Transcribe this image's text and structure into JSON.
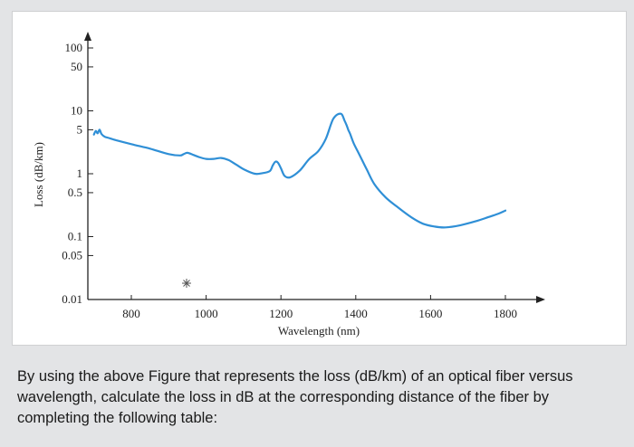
{
  "chart_data": {
    "type": "line",
    "title": "",
    "xlabel": "Wavelength (nm)",
    "ylabel": "Loss (dB/km)",
    "xlim": [
      650,
      1900
    ],
    "ylim": [
      0.01,
      300
    ],
    "y_scale": "log",
    "x_ticks": [
      800,
      1000,
      1200,
      1400,
      1600,
      1800
    ],
    "y_ticks": [
      {
        "value": 100,
        "label": "100"
      },
      {
        "value": 50,
        "label": "50"
      },
      {
        "value": 10,
        "label": "10"
      },
      {
        "value": 5,
        "label": "5"
      },
      {
        "value": 1,
        "label": "1"
      },
      {
        "value": 0.5,
        "label": "0.5"
      },
      {
        "value": 0.1,
        "label": "0.1"
      },
      {
        "value": 0.05,
        "label": "0.05"
      },
      {
        "value": 0.01,
        "label": "0.01"
      }
    ],
    "grid": false,
    "series_color": "#2f8fd6",
    "series": [
      {
        "x": [
          700,
          705,
          710,
          715,
          720,
          728,
          740,
          760,
          800,
          850,
          900,
          930,
          940,
          950,
          965,
          980,
          1000,
          1020,
          1040,
          1060,
          1080,
          1100,
          1130,
          1150,
          1170,
          1178,
          1185,
          1192,
          1200,
          1210,
          1225,
          1250,
          1275,
          1300,
          1320,
          1340,
          1360,
          1370,
          1375,
          1380,
          1385,
          1395,
          1410,
          1430,
          1450,
          1480,
          1510,
          1550,
          1580,
          1610,
          1640,
          1680,
          1720,
          1750,
          1780,
          1800
        ],
        "y": [
          4.2,
          4.8,
          4.4,
          5.0,
          4.3,
          3.9,
          3.7,
          3.4,
          2.95,
          2.5,
          2.05,
          1.95,
          2.05,
          2.15,
          2.0,
          1.85,
          1.72,
          1.72,
          1.78,
          1.65,
          1.4,
          1.18,
          1.0,
          1.02,
          1.1,
          1.35,
          1.55,
          1.5,
          1.22,
          0.92,
          0.88,
          1.12,
          1.7,
          2.3,
          3.6,
          7.5,
          9.0,
          7.0,
          6.0,
          5.0,
          4.3,
          3.0,
          2.0,
          1.15,
          0.68,
          0.42,
          0.3,
          0.2,
          0.16,
          0.145,
          0.14,
          0.152,
          0.175,
          0.2,
          0.23,
          0.26
        ]
      }
    ]
  },
  "caption": "By using the above Figure that represents the loss (dB/km) of an optical fiber versus wavelength, calculate the loss in dB at the corresponding distance of the fiber by completing the following table:"
}
